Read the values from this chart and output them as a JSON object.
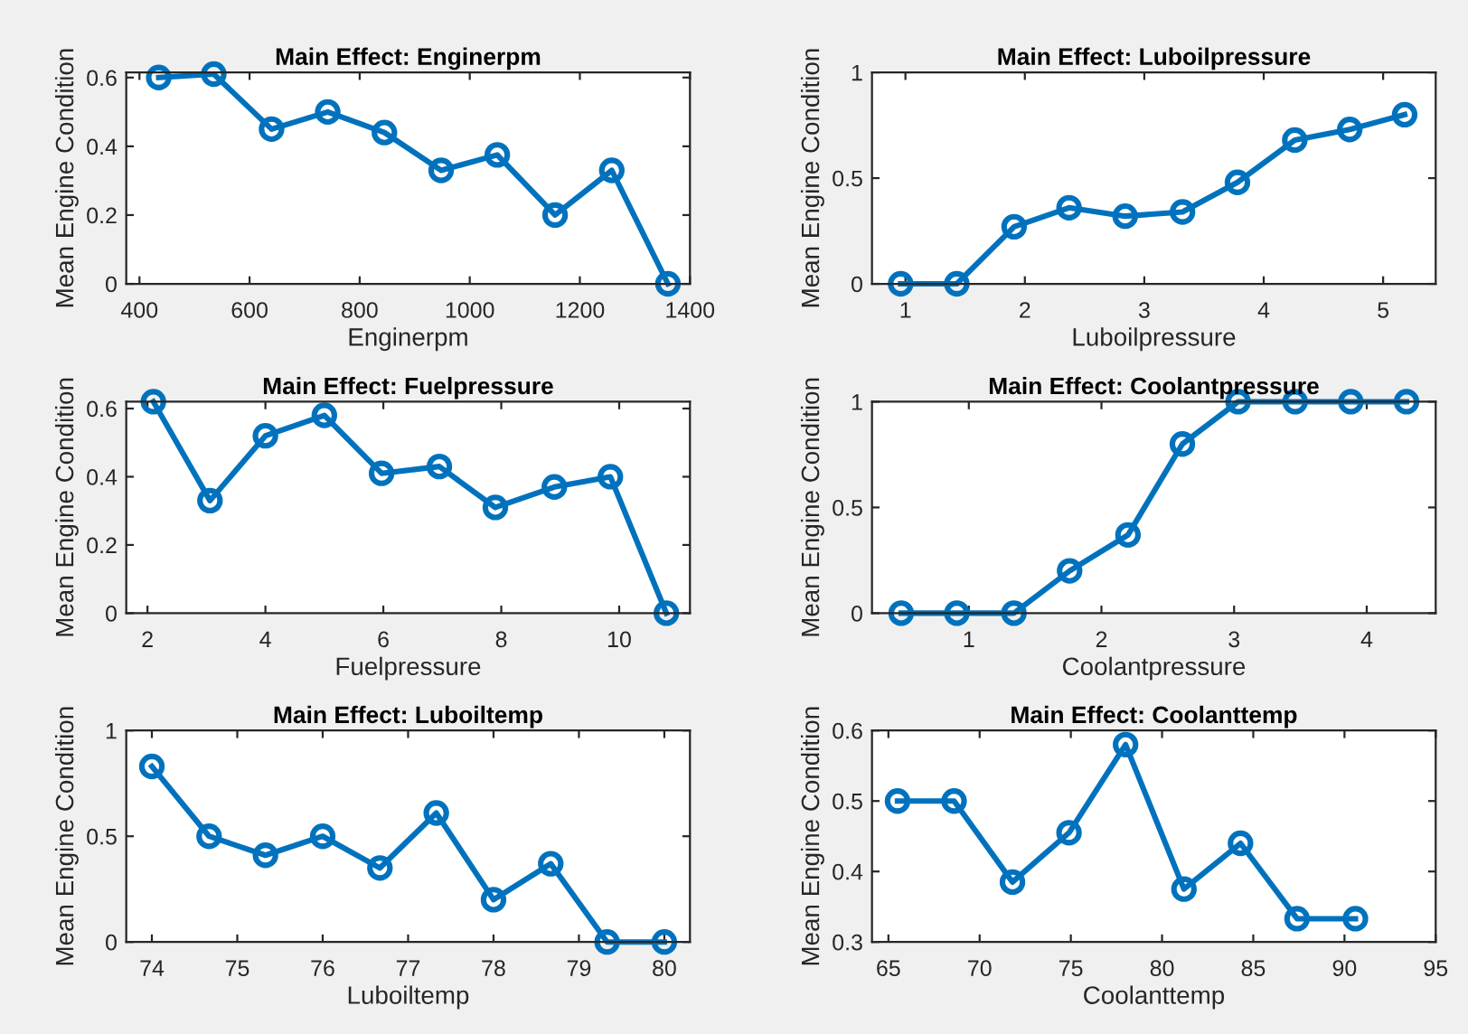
{
  "chart_data": [
    {
      "type": "line",
      "title": "Main Effect: Enginerpm",
      "xlabel": "Enginerpm",
      "ylabel": "Mean Engine Condition",
      "marker": "circle",
      "line_style": "solid",
      "grid": false,
      "x": [
        435,
        535,
        640,
        742,
        845,
        948,
        1050,
        1155,
        1258,
        1360
      ],
      "series": [
        {
          "color": "#0072bd",
          "values": [
            0.6,
            0.61,
            0.45,
            0.5,
            0.44,
            0.33,
            0.375,
            0.2,
            0.33,
            0
          ]
        }
      ],
      "xlim": [
        376,
        1400
      ],
      "ylim": [
        0,
        0.615
      ],
      "xticks": [
        400,
        600,
        800,
        1000,
        1200,
        1400
      ],
      "yticks": [
        0,
        0.2,
        0.4,
        0.6
      ]
    },
    {
      "type": "line",
      "title": "Main Effect: Luboilpressure",
      "xlabel": "Luboilpressure",
      "ylabel": "Mean Engine Condition",
      "marker": "circle",
      "line_style": "solid",
      "grid": false,
      "x": [
        0.96,
        1.43,
        1.91,
        2.37,
        2.84,
        3.32,
        3.78,
        4.26,
        4.72,
        5.18
      ],
      "series": [
        {
          "color": "#0072bd",
          "values": [
            0,
            0,
            0.27,
            0.36,
            0.32,
            0.34,
            0.48,
            0.68,
            0.73,
            0.8
          ]
        }
      ],
      "xlim": [
        0.72,
        5.44
      ],
      "ylim": [
        0,
        1
      ],
      "xticks": [
        1,
        2,
        3,
        4,
        5
      ],
      "yticks": [
        0,
        0.5,
        1
      ]
    },
    {
      "type": "line",
      "title": "Main Effect: Fuelpressure",
      "xlabel": "Fuelpressure",
      "ylabel": "Mean Engine Condition",
      "marker": "circle",
      "line_style": "solid",
      "grid": false,
      "x": [
        2.1,
        3.06,
        4.0,
        5.0,
        5.97,
        6.95,
        7.9,
        8.9,
        9.85,
        10.8
      ],
      "series": [
        {
          "color": "#0072bd",
          "values": [
            0.62,
            0.33,
            0.52,
            0.58,
            0.41,
            0.43,
            0.31,
            0.37,
            0.4,
            0
          ]
        }
      ],
      "xlim": [
        1.64,
        11.2
      ],
      "ylim": [
        0,
        0.62
      ],
      "xticks": [
        2,
        4,
        6,
        8,
        10
      ],
      "yticks": [
        0,
        0.2,
        0.4,
        0.6
      ]
    },
    {
      "type": "line",
      "title": "Main Effect: Coolantpressure",
      "xlabel": "Coolantpressure",
      "ylabel": "Mean Engine Condition",
      "marker": "circle",
      "line_style": "solid",
      "grid": false,
      "x": [
        0.49,
        0.91,
        1.34,
        1.76,
        2.2,
        2.61,
        3.03,
        3.46,
        3.88,
        4.3
      ],
      "series": [
        {
          "color": "#0072bd",
          "values": [
            0,
            0,
            0,
            0.2,
            0.37,
            0.8,
            1,
            1,
            1,
            1
          ]
        }
      ],
      "xlim": [
        0.27,
        4.52
      ],
      "ylim": [
        0,
        1
      ],
      "xticks": [
        1,
        2,
        3,
        4
      ],
      "yticks": [
        0,
        0.5,
        1
      ]
    },
    {
      "type": "line",
      "title": "Main Effect: Luboiltemp",
      "xlabel": "Luboiltemp",
      "ylabel": "Mean Engine Condition",
      "marker": "circle",
      "line_style": "solid",
      "grid": false,
      "x": [
        74,
        74.67,
        75.33,
        76,
        76.67,
        77.33,
        78,
        78.67,
        79.33,
        80
      ],
      "series": [
        {
          "color": "#0072bd",
          "values": [
            0.83,
            0.5,
            0.41,
            0.5,
            0.35,
            0.61,
            0.2,
            0.37,
            0,
            0
          ]
        }
      ],
      "xlim": [
        73.7,
        80.3
      ],
      "ylim": [
        0,
        1
      ],
      "xticks": [
        74,
        75,
        76,
        77,
        78,
        79,
        80
      ],
      "yticks": [
        0,
        0.5,
        1
      ]
    },
    {
      "type": "line",
      "title": "Main Effect: Coolanttemp",
      "xlabel": "Coolanttemp",
      "ylabel": "Mean Engine Condition",
      "marker": "circle",
      "line_style": "solid",
      "grid": false,
      "x": [
        65.5,
        68.6,
        71.8,
        74.9,
        78,
        81.2,
        84.3,
        87.4,
        90.6
      ],
      "series": [
        {
          "color": "#0072bd",
          "values": [
            0.5,
            0.5,
            0.385,
            0.455,
            0.58,
            0.375,
            0.44,
            0.333,
            0.333
          ]
        }
      ],
      "xlim": [
        64.1,
        95
      ],
      "ylim": [
        0.3,
        0.6
      ],
      "xticks": [
        65,
        70,
        75,
        80,
        85,
        90,
        95
      ],
      "yticks": [
        0.3,
        0.4,
        0.5,
        0.6
      ]
    }
  ]
}
